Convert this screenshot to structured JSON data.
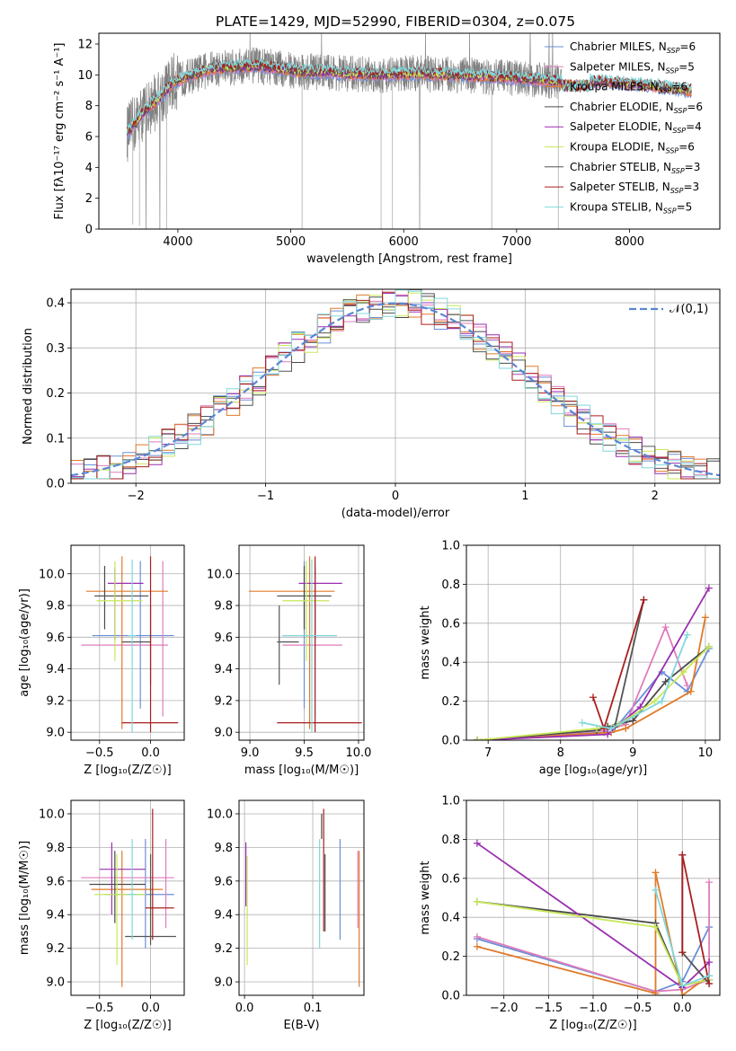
{
  "title": "PLATE=1429, MJD=52990, FIBERID=0304, z=0.075",
  "colors": {
    "Chabrier MILES": "#6a8fd8",
    "Salpeter MILES": "#e07cbc",
    "Kroupa MILES": "#e07a2a",
    "Chabrier ELODIE": "#4a4a4a",
    "Salpeter ELODIE": "#9a2fb0",
    "Kroupa ELODIE": "#c8e85a",
    "Chabrier STELIB": "#555555",
    "Salpeter STELIB": "#aa1e1e",
    "Kroupa STELIB": "#80d8dc"
  },
  "chart_data": [
    {
      "type": "line",
      "name": "spectrum",
      "xlabel": "wavelength [Angstrom, rest frame]",
      "ylabel": "Flux [fλ10⁻¹⁷ erg cm⁻² s⁻¹ A⁻¹]",
      "xlim": [
        3300,
        8800
      ],
      "ylim": [
        0,
        12.7
      ],
      "xticks": [
        4000,
        5000,
        6000,
        7000,
        8000
      ],
      "yticks": [
        0,
        2,
        4,
        6,
        8,
        10,
        12
      ],
      "grid": false,
      "legend_position": "right",
      "legend": [
        {
          "label": "Chabrier MILES, N",
          "sub": "SSP",
          "n": "=6"
        },
        {
          "label": "Salpeter MILES, N",
          "sub": "SSP",
          "n": "=5"
        },
        {
          "label": "Kroupa MILES, N",
          "sub": "SSP",
          "n": "=6"
        },
        {
          "label": "Chabrier ELODIE, N",
          "sub": "SSP",
          "n": "=6"
        },
        {
          "label": "Salpeter ELODIE, N",
          "sub": "SSP",
          "n": "=4"
        },
        {
          "label": "Kroupa ELODIE, N",
          "sub": "SSP",
          "n": "=6"
        },
        {
          "label": "Chabrier STELIB, N",
          "sub": "SSP",
          "n": "=3"
        },
        {
          "label": "Salpeter STELIB, N",
          "sub": "SSP",
          "n": "=3"
        },
        {
          "label": "Kroupa STELIB, N",
          "sub": "SSP",
          "n": "=5"
        }
      ],
      "data_envelope": {
        "x": [
          3550,
          3700,
          3850,
          3950,
          4100,
          4300,
          4500,
          4700,
          4900,
          5100,
          5300,
          5500,
          5800,
          6100,
          6400,
          6700,
          7000,
          7300,
          7600,
          7900,
          8200,
          8500
        ],
        "y": [
          6.2,
          7.6,
          8.6,
          9.5,
          9.9,
          10.4,
          10.5,
          10.6,
          10.4,
          10.2,
          10.2,
          10.1,
          10.0,
          10.1,
          10.0,
          9.9,
          9.8,
          9.6,
          9.6,
          9.5,
          9.3,
          9.0
        ]
      },
      "model_range": [
        3550,
        8550
      ],
      "spectrum_range": [
        3550,
        7400
      ]
    },
    {
      "type": "histogram",
      "name": "residuals",
      "xlabel": "(data-model)/error",
      "ylabel": "Normed distribution",
      "xlim": [
        -2.5,
        2.5
      ],
      "ylim": [
        0,
        0.43
      ],
      "xticks": [
        -2,
        -1,
        0,
        1,
        2
      ],
      "yticks": [
        0.0,
        0.1,
        0.2,
        0.3,
        0.4
      ],
      "grid": true,
      "legend": "𝒩(0,1)",
      "legend_position": "top-right",
      "bin_width": 0.1,
      "curve": {
        "mean": 0,
        "sigma": 1,
        "color": "#5b86d4"
      }
    },
    {
      "type": "scatter",
      "name": "age-vs-Z",
      "xlabel": "Z [log₁₀(Z/Z☉)]",
      "ylabel": "age  [log₁₀(age/yr)]",
      "xlim": [
        -0.78,
        0.33
      ],
      "ylim": [
        8.95,
        10.18
      ],
      "xticks": [
        -0.5,
        0.0
      ],
      "yticks": [
        9.0,
        9.2,
        9.4,
        9.6,
        9.8,
        10.0
      ],
      "grid": true,
      "points": [
        {
          "s": "Chabrier MILES",
          "x": -0.1,
          "xe": [
            -0.57,
            0.23
          ],
          "y": 9.61,
          "ye": [
            9.15,
            10.08
          ]
        },
        {
          "s": "Salpeter MILES",
          "x": 0.12,
          "xe": [
            -0.68,
            0.17
          ],
          "y": 9.55,
          "ye": [
            9.1,
            10.08
          ]
        },
        {
          "s": "Kroupa MILES",
          "x": -0.28,
          "xe": [
            -0.63,
            0.17
          ],
          "y": 9.89,
          "ye": [
            9.02,
            10.11
          ]
        },
        {
          "s": "Chabrier ELODIE",
          "x": -0.45,
          "xe": [
            -0.55,
            -0.02
          ],
          "y": 9.86,
          "ye": [
            9.65,
            10.05
          ]
        },
        {
          "s": "Salpeter ELODIE",
          "x": -0.35,
          "xe": [
            -0.42,
            -0.07
          ],
          "y": 9.94,
          "ye": [
            9.58,
            10.04
          ]
        },
        {
          "s": "Kroupa ELODIE",
          "x": -0.35,
          "xe": [
            -0.53,
            -0.08
          ],
          "y": 9.83,
          "ye": [
            9.45,
            10.08
          ]
        },
        {
          "s": "Chabrier STELIB",
          "x": 0.0,
          "xe": [
            -0.28,
            0.0
          ],
          "y": 9.57,
          "ye": [
            9.3,
            9.8
          ]
        },
        {
          "s": "Salpeter STELIB",
          "x": 0.0,
          "xe": [
            -0.28,
            0.27
          ],
          "y": 9.06,
          "ye": [
            9.0,
            10.11
          ]
        },
        {
          "s": "Kroupa STELIB",
          "x": -0.18,
          "xe": [
            -0.22,
            -0.14
          ],
          "y": 9.61,
          "ye": [
            9.0,
            10.09
          ]
        }
      ]
    },
    {
      "type": "scatter",
      "name": "age-vs-mass",
      "xlabel": "mass [log₁₀(M/M☉)]",
      "ylabel": "",
      "xlim": [
        8.9,
        10.05
      ],
      "ylim": [
        8.95,
        10.18
      ],
      "xticks": [
        9.0,
        9.5,
        10.0
      ],
      "yticks": [
        9.0,
        9.2,
        9.4,
        9.6,
        9.8,
        10.0
      ],
      "grid": true,
      "points": [
        {
          "s": "Chabrier MILES",
          "x": 9.5,
          "xe": [
            9.3,
            9.8
          ],
          "y": 9.61,
          "ye": [
            9.15,
            10.08
          ]
        },
        {
          "s": "Salpeter MILES",
          "x": 9.6,
          "xe": [
            9.3,
            9.85
          ],
          "y": 9.55,
          "ye": [
            9.1,
            10.08
          ]
        },
        {
          "s": "Kroupa MILES",
          "x": 9.55,
          "xe": [
            8.99,
            9.78
          ],
          "y": 9.89,
          "ye": [
            9.02,
            10.11
          ]
        },
        {
          "s": "Chabrier ELODIE",
          "x": 9.5,
          "xe": [
            9.25,
            9.75
          ],
          "y": 9.86,
          "ye": [
            9.65,
            10.05
          ]
        },
        {
          "s": "Salpeter ELODIE",
          "x": 9.6,
          "xe": [
            9.45,
            9.85
          ],
          "y": 9.94,
          "ye": [
            9.58,
            10.04
          ]
        },
        {
          "s": "Kroupa ELODIE",
          "x": 9.52,
          "xe": [
            9.3,
            9.73
          ],
          "y": 9.83,
          "ye": [
            9.45,
            10.08
          ]
        },
        {
          "s": "Chabrier STELIB",
          "x": 9.27,
          "xe": [
            9.25,
            9.45
          ],
          "y": 9.57,
          "ye": [
            9.3,
            9.8
          ]
        },
        {
          "s": "Salpeter STELIB",
          "x": 9.6,
          "xe": [
            9.25,
            10.03
          ],
          "y": 9.06,
          "ye": [
            9.0,
            10.11
          ]
        },
        {
          "s": "Kroupa STELIB",
          "x": 9.57,
          "xe": [
            9.3,
            9.8
          ],
          "y": 9.61,
          "ye": [
            9.0,
            10.09
          ]
        }
      ]
    },
    {
      "type": "line",
      "name": "weight-vs-age",
      "xlabel": "age  [log₁₀(age/yr)]",
      "ylabel": "mass weight",
      "xlim": [
        6.7,
        10.2
      ],
      "ylim": [
        0,
        1.0
      ],
      "xticks": [
        7,
        8,
        9,
        10
      ],
      "yticks": [
        0.0,
        0.2,
        0.4,
        0.6,
        0.8,
        1.0
      ],
      "grid": true,
      "series": [
        {
          "s": "Chabrier MILES",
          "x": [
            6.85,
            8.6,
            8.8,
            9.4,
            9.75,
            10.05
          ],
          "y": [
            0.0,
            0.04,
            0.08,
            0.35,
            0.25,
            0.47
          ]
        },
        {
          "s": "Salpeter MILES",
          "x": [
            6.85,
            8.6,
            8.9,
            9.45,
            9.75
          ],
          "y": [
            0.0,
            0.05,
            0.08,
            0.58,
            0.28
          ]
        },
        {
          "s": "Kroupa MILES",
          "x": [
            6.85,
            8.7,
            8.9,
            9.8,
            10.0
          ],
          "y": [
            0.0,
            0.04,
            0.06,
            0.25,
            0.63
          ]
        },
        {
          "s": "Chabrier ELODIE",
          "x": [
            6.85,
            8.5,
            8.65,
            9.0,
            9.45,
            10.05
          ],
          "y": [
            0.0,
            0.05,
            0.07,
            0.1,
            0.3,
            0.48
          ]
        },
        {
          "s": "Salpeter ELODIE",
          "x": [
            6.85,
            8.65,
            9.1,
            10.05
          ],
          "y": [
            0.0,
            0.03,
            0.17,
            0.78
          ]
        },
        {
          "s": "Kroupa ELODIE",
          "x": [
            6.85,
            8.5,
            8.8,
            9.3,
            9.7,
            10.05
          ],
          "y": [
            0.0,
            0.06,
            0.08,
            0.2,
            0.35,
            0.48
          ]
        },
        {
          "s": "Chabrier STELIB",
          "x": [
            8.65,
            8.75,
            9.15
          ],
          "y": [
            0.07,
            0.07,
            0.72
          ]
        },
        {
          "s": "Salpeter STELIB",
          "x": [
            8.45,
            8.6,
            9.15
          ],
          "y": [
            0.22,
            0.06,
            0.72
          ]
        },
        {
          "s": "Kroupa STELIB",
          "x": [
            8.3,
            8.7,
            9.4,
            9.75
          ],
          "y": [
            0.09,
            0.06,
            0.2,
            0.54
          ]
        }
      ]
    },
    {
      "type": "scatter",
      "name": "mass-vs-Z",
      "xlabel": "Z [log₁₀(Z/Z☉)]",
      "ylabel": "mass [log₁₀(M/M☉)]",
      "xlim": [
        -0.78,
        0.33
      ],
      "ylim": [
        8.92,
        10.08
      ],
      "xticks": [
        -0.5,
        0.0
      ],
      "yticks": [
        9.0,
        9.2,
        9.4,
        9.6,
        9.8,
        10.0
      ],
      "grid": true,
      "points": [
        {
          "s": "Chabrier MILES",
          "x": -0.05,
          "xe": [
            -0.45,
            0.23
          ],
          "y": 9.52,
          "ye": [
            9.2,
            9.85
          ]
        },
        {
          "s": "Salpeter MILES",
          "x": 0.15,
          "xe": [
            -0.68,
            0.23
          ],
          "y": 9.62,
          "ye": [
            9.32,
            9.85
          ]
        },
        {
          "s": "Kroupa MILES",
          "x": -0.28,
          "xe": [
            -0.58,
            0.12
          ],
          "y": 9.55,
          "ye": [
            8.97,
            9.78
          ]
        },
        {
          "s": "Chabrier ELODIE",
          "x": -0.35,
          "xe": [
            -0.6,
            -0.05
          ],
          "y": 9.58,
          "ye": [
            9.35,
            9.78
          ]
        },
        {
          "s": "Salpeter ELODIE",
          "x": -0.38,
          "xe": [
            -0.5,
            -0.05
          ],
          "y": 9.67,
          "ye": [
            9.4,
            9.83
          ]
        },
        {
          "s": "Kroupa ELODIE",
          "x": -0.33,
          "xe": [
            -0.55,
            -0.05
          ],
          "y": 9.52,
          "ye": [
            9.1,
            9.76
          ]
        },
        {
          "s": "Chabrier STELIB",
          "x": 0.0,
          "xe": [
            -0.25,
            0.25
          ],
          "y": 9.27,
          "ye": [
            9.22,
            9.76
          ]
        },
        {
          "s": "Salpeter STELIB",
          "x": 0.02,
          "xe": [
            -0.05,
            0.23
          ],
          "y": 9.44,
          "ye": [
            9.25,
            10.03
          ]
        },
        {
          "s": "Kroupa STELIB",
          "x": -0.18,
          "xe": [
            -0.22,
            -0.14
          ],
          "y": 9.52,
          "ye": [
            9.25,
            9.85
          ]
        }
      ]
    },
    {
      "type": "scatter",
      "name": "mass-vs-ebv",
      "xlabel": "E(B-V)",
      "ylabel": "",
      "xlim": [
        -0.008,
        0.175
      ],
      "ylim": [
        8.92,
        10.08
      ],
      "xticks": [
        0.0,
        0.1
      ],
      "yticks": [
        9.0,
        9.2,
        9.4,
        9.6,
        9.8,
        10.0
      ],
      "grid": true,
      "points": [
        {
          "s": "Chabrier MILES",
          "x": 0.14,
          "ye": [
            9.25,
            9.85
          ]
        },
        {
          "s": "Salpeter MILES",
          "x": 0.166,
          "ye": [
            9.32,
            9.78
          ]
        },
        {
          "s": "Kroupa MILES",
          "x": 0.168,
          "ye": [
            8.97,
            9.78
          ]
        },
        {
          "s": "Chabrier ELODIE",
          "x": 0.113,
          "ye": [
            9.85,
            10.0
          ]
        },
        {
          "s": "Salpeter ELODIE",
          "x": 0.002,
          "ye": [
            9.45,
            9.83
          ]
        },
        {
          "s": "Kroupa ELODIE",
          "x": 0.004,
          "ye": [
            9.1,
            9.75
          ]
        },
        {
          "s": "Chabrier STELIB",
          "x": 0.118,
          "ye": [
            9.3,
            9.76
          ]
        },
        {
          "s": "Salpeter STELIB",
          "x": 0.116,
          "ye": [
            9.3,
            10.03
          ]
        },
        {
          "s": "Kroupa STELIB",
          "x": 0.11,
          "ye": [
            9.2,
            9.85
          ]
        }
      ]
    },
    {
      "type": "line",
      "name": "weight-vs-Z",
      "xlabel": "Z [log₁₀(Z/Z☉)]",
      "ylabel": "mass weight",
      "xlim": [
        -2.42,
        0.42
      ],
      "ylim": [
        0,
        1.0
      ],
      "xticks": [
        -2.0,
        -1.5,
        -1.0,
        -0.5,
        0.0
      ],
      "yticks": [
        0.0,
        0.2,
        0.4,
        0.6,
        0.8,
        1.0
      ],
      "grid": true,
      "series": [
        {
          "s": "Chabrier MILES",
          "x": [
            -2.3,
            -0.3,
            0.0,
            0.3
          ],
          "y": [
            0.29,
            0.02,
            0.07,
            0.35
          ]
        },
        {
          "s": "Salpeter MILES",
          "x": [
            -2.3,
            -0.3,
            0.0,
            0.3,
            0.3
          ],
          "y": [
            0.3,
            0.02,
            0.03,
            0.08,
            0.58
          ]
        },
        {
          "s": "Kroupa MILES",
          "x": [
            -2.3,
            -0.3,
            -0.3,
            0.0,
            0.3
          ],
          "y": [
            0.25,
            0.01,
            0.63,
            0.0,
            0.1
          ]
        },
        {
          "s": "Chabrier ELODIE",
          "x": [
            -2.3,
            -0.3,
            0.0,
            0.3
          ],
          "y": [
            0.48,
            0.37,
            0.05,
            0.08
          ]
        },
        {
          "s": "Salpeter ELODIE",
          "x": [
            -2.3,
            0.0,
            0.3
          ],
          "y": [
            0.78,
            0.04,
            0.17
          ]
        },
        {
          "s": "Kroupa ELODIE",
          "x": [
            -2.3,
            -0.3,
            0.0,
            0.3
          ],
          "y": [
            0.48,
            0.35,
            0.05,
            0.08
          ]
        },
        {
          "s": "Chabrier STELIB",
          "x": [
            0.0,
            0.0,
            0.3
          ],
          "y": [
            0.72,
            0.22,
            0.06
          ]
        },
        {
          "s": "Salpeter STELIB",
          "x": [
            0.0,
            0.0,
            0.3
          ],
          "y": [
            0.22,
            0.72,
            0.06
          ]
        },
        {
          "s": "Kroupa STELIB",
          "x": [
            -0.3,
            0.0,
            0.3
          ],
          "y": [
            0.54,
            0.05,
            0.1
          ]
        }
      ]
    }
  ]
}
